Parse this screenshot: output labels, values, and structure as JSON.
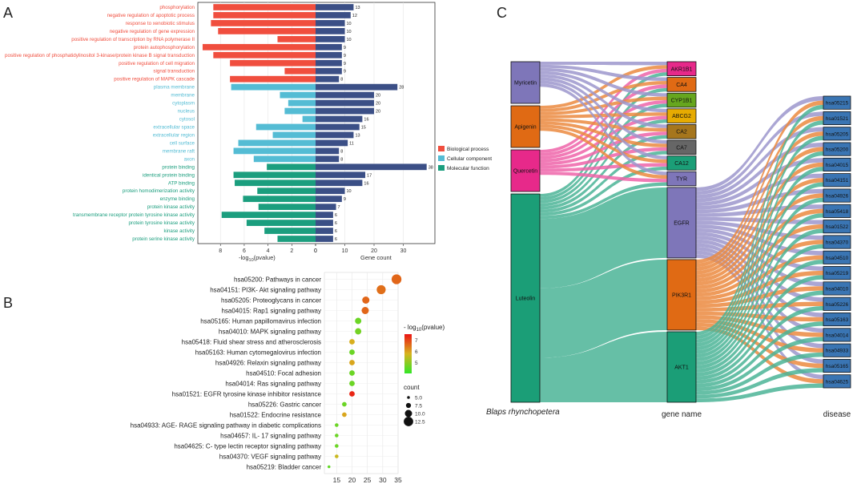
{
  "panel_labels": {
    "a": "A",
    "b": "B",
    "c": "C"
  },
  "chart_data": [
    {
      "type": "bar",
      "title": "",
      "xlabel_left_base": "-log",
      "xlabel_left_sub": "10",
      "xlabel_left_rest": "(pvalue)",
      "xlabel_right": "Gene count",
      "left_ticks": [
        "8",
        "6",
        "4",
        "2",
        "0"
      ],
      "right_ticks": [
        "0",
        "10",
        "20",
        "30"
      ],
      "left_xlim": [
        0,
        9.7
      ],
      "right_xlim": [
        0,
        40
      ],
      "colors": {
        "Biological process": "#f04e3e",
        "Cellular component": "#54bcd4",
        "Molecular function": "#1b9e7e",
        "count": "#3b4f86"
      },
      "legend": [
        "Biological process",
        "Cellular component",
        "Molecular function"
      ],
      "terms": [
        {
          "term": "phosphorylation",
          "category": "Biological process",
          "neglog10p": 8.6,
          "count": 13
        },
        {
          "term": "negative regulation of apoptotic process",
          "category": "Biological process",
          "neglog10p": 8.6,
          "count": 12
        },
        {
          "term": "response to xenobiotic stimulus",
          "category": "Biological process",
          "neglog10p": 8.8,
          "count": 10
        },
        {
          "term": "negative regulation of gene expression",
          "category": "Biological process",
          "neglog10p": 8.2,
          "count": 10
        },
        {
          "term": "positive regulation of transcription by RNA polymerase II",
          "category": "Biological process",
          "neglog10p": 3.2,
          "count": 10
        },
        {
          "term": "protein autophosphorylation",
          "category": "Biological process",
          "neglog10p": 9.5,
          "count": 9
        },
        {
          "term": "positive regulation of phosphatidylinositol 3-kinase/protein kinase B signal transduction",
          "category": "Biological process",
          "neglog10p": 8.6,
          "count": 9
        },
        {
          "term": "positive regulation of cell migration",
          "category": "Biological process",
          "neglog10p": 7.2,
          "count": 9
        },
        {
          "term": "signal transduction",
          "category": "Biological process",
          "neglog10p": 2.6,
          "count": 9
        },
        {
          "term": "positive regulation of MAPK cascade",
          "category": "Biological process",
          "neglog10p": 7.2,
          "count": 8
        },
        {
          "term": "plasma membrane",
          "category": "Cellular component",
          "neglog10p": 7.1,
          "count": 28
        },
        {
          "term": "membrane",
          "category": "Cellular component",
          "neglog10p": 3.0,
          "count": 20
        },
        {
          "term": "cytoplasm",
          "category": "Cellular component",
          "neglog10p": 2.3,
          "count": 20
        },
        {
          "term": "nucleus",
          "category": "Cellular component",
          "neglog10p": 2.6,
          "count": 20
        },
        {
          "term": "cytosol",
          "category": "Cellular component",
          "neglog10p": 1.1,
          "count": 16
        },
        {
          "term": "extracellular space",
          "category": "Cellular component",
          "neglog10p": 5.0,
          "count": 15
        },
        {
          "term": "extracellular region",
          "category": "Cellular component",
          "neglog10p": 3.6,
          "count": 13
        },
        {
          "term": "cell surface",
          "category": "Cellular component",
          "neglog10p": 6.5,
          "count": 11
        },
        {
          "term": "membrane raft",
          "category": "Cellular component",
          "neglog10p": 6.9,
          "count": 8
        },
        {
          "term": "axon",
          "category": "Cellular component",
          "neglog10p": 5.2,
          "count": 8
        },
        {
          "term": "protein binding",
          "category": "Molecular function",
          "neglog10p": 4.1,
          "count": 38
        },
        {
          "term": "identical protein binding",
          "category": "Molecular function",
          "neglog10p": 6.9,
          "count": 17
        },
        {
          "term": "ATP binding",
          "category": "Molecular function",
          "neglog10p": 6.8,
          "count": 16
        },
        {
          "term": "protein homodimerization activity",
          "category": "Molecular function",
          "neglog10p": 4.9,
          "count": 10
        },
        {
          "term": "enzyme binding",
          "category": "Molecular function",
          "neglog10p": 6.1,
          "count": 9
        },
        {
          "term": "protein kinase activity",
          "category": "Molecular function",
          "neglog10p": 4.8,
          "count": 7
        },
        {
          "term": "transmembrane receptor protein tyrosine kinase activity",
          "category": "Molecular function",
          "neglog10p": 7.9,
          "count": 6
        },
        {
          "term": "protein tyrosine kinase activity",
          "category": "Molecular function",
          "neglog10p": 5.8,
          "count": 6
        },
        {
          "term": "kinase activity",
          "category": "Molecular function",
          "neglog10p": 4.3,
          "count": 6
        },
        {
          "term": "protein serine kinase activity",
          "category": "Molecular function",
          "neglog10p": 3.2,
          "count": 6
        }
      ]
    },
    {
      "type": "scatter",
      "title": "",
      "xlabel": "",
      "x_ticks": [
        "15",
        "20",
        "25",
        "30",
        "35"
      ],
      "xlim": [
        11,
        35
      ],
      "color_legend_title_base": "- log",
      "color_legend_title_sub": "10",
      "color_legend_title_rest": "(pvalue)",
      "color_ticks": [
        "7",
        "6",
        "5"
      ],
      "color_range": [
        4,
        7.5
      ],
      "size_legend_title": "count",
      "size_ticks": [
        "5.0",
        "7.5",
        "10.0",
        "12.5"
      ],
      "pathways": [
        {
          "label": "hsa05200: Pathways in cancer",
          "x": 34.5,
          "logp": 6.6,
          "count": 13
        },
        {
          "label": "hsa04151: PI3K- Akt signaling pathway",
          "x": 29.5,
          "logp": 6.5,
          "count": 12
        },
        {
          "label": "hsa05205: Proteoglycans in cancer",
          "x": 24.5,
          "logp": 6.6,
          "count": 10
        },
        {
          "label": "hsa04015: Rap1 signaling pathway",
          "x": 24.3,
          "logp": 6.6,
          "count": 10
        },
        {
          "label": "hsa05165: Human papillomavirus infection",
          "x": 22.0,
          "logp": 4.6,
          "count": 9
        },
        {
          "label": "hsa04010: MAPK signaling pathway",
          "x": 22.0,
          "logp": 4.7,
          "count": 9
        },
        {
          "label": "hsa05418: Fluid shear stress and atherosclerosis",
          "x": 20.0,
          "logp": 5.8,
          "count": 8
        },
        {
          "label": "hsa05163: Human cytomegalovirus infection",
          "x": 20.0,
          "logp": 4.6,
          "count": 8
        },
        {
          "label": "hsa04926: Relaxin signaling pathway",
          "x": 20.0,
          "logp": 5.9,
          "count": 8
        },
        {
          "label": "hsa04510: Focal adhesion",
          "x": 20.0,
          "logp": 4.6,
          "count": 8
        },
        {
          "label": "hsa04014: Ras signaling pathway",
          "x": 20.0,
          "logp": 4.6,
          "count": 8
        },
        {
          "label": "hsa01521: EGFR tyrosine kinase inhibitor resistance",
          "x": 20.0,
          "logp": 7.3,
          "count": 8
        },
        {
          "label": "hsa05226: Gastric cancer",
          "x": 17.5,
          "logp": 4.6,
          "count": 7
        },
        {
          "label": "hsa01522: Endocrine resistance",
          "x": 17.5,
          "logp": 5.9,
          "count": 7
        },
        {
          "label": "hsa04933: AGE- RAGE signaling pathway in diabetic complications",
          "x": 15.0,
          "logp": 4.6,
          "count": 6
        },
        {
          "label": "hsa04657: IL- 17 signaling pathway",
          "x": 15.0,
          "logp": 4.6,
          "count": 6
        },
        {
          "label": "hsa04625: C- type lectin receptor signaling pathway",
          "x": 15.0,
          "logp": 4.6,
          "count": 6
        },
        {
          "label": "hsa04370: VEGF signaling pathway",
          "x": 15.0,
          "logp": 5.6,
          "count": 6
        },
        {
          "label": "hsa05219: Bladder cancer",
          "x": 12.5,
          "logp": 4.5,
          "count": 5
        }
      ]
    },
    {
      "type": "sankey",
      "title": "",
      "column_labels": {
        "left": "Blaps rhynchopetera",
        "middle": "gene name",
        "right": "disease"
      },
      "sources": [
        {
          "name": "Myricetin",
          "color": "#7e76b9",
          "weight": 3
        },
        {
          "name": "Apigenin",
          "color": "#e06a14",
          "weight": 3
        },
        {
          "name": "Quercetin",
          "color": "#e7298a",
          "weight": 3
        },
        {
          "name": "Luteolin",
          "color": "#1b9e77",
          "weight": 15
        }
      ],
      "genes": [
        {
          "name": "AKR1B1",
          "color": "#e7298a",
          "weight": 1
        },
        {
          "name": "CA4",
          "color": "#e06a14",
          "weight": 1
        },
        {
          "name": "CYP1B1",
          "color": "#66a61e",
          "weight": 1
        },
        {
          "name": "ABCG2",
          "color": "#e6ab02",
          "weight": 1
        },
        {
          "name": "CA2",
          "color": "#a6761d",
          "weight": 1
        },
        {
          "name": "CA7",
          "color": "#666666",
          "weight": 1
        },
        {
          "name": "CA12",
          "color": "#1b9e77",
          "weight": 1
        },
        {
          "name": "TYR",
          "color": "#7e76b9",
          "weight": 1
        },
        {
          "name": "EGFR",
          "color": "#7e76b9",
          "weight": 5
        },
        {
          "name": "PIK3R1",
          "color": "#e06a14",
          "weight": 5
        },
        {
          "name": "AKT1",
          "color": "#1b9e77",
          "weight": 5
        }
      ],
      "diseases": [
        "hsa05215",
        "hsa01521",
        "hsa05205",
        "hsa05200",
        "hsa04015",
        "hsa04151",
        "hsa04926",
        "hsa05418",
        "hsa01522",
        "hsa04370",
        "hsa04510",
        "hsa05219",
        "hsa04010",
        "hsa05226",
        "hsa05163",
        "hsa04014",
        "hsa04933",
        "hsa05165",
        "hsa04625"
      ],
      "disease_color": "#3a75b3",
      "flow_colors": [
        "#9c96cd",
        "#eb8a3f",
        "#ee64a9",
        "#4bb496"
      ],
      "gene_source": [
        [
          "Myricetin",
          "Apigenin",
          "Quercetin",
          "Luteolin"
        ],
        [
          "Myricetin",
          "Apigenin",
          "Quercetin",
          "Luteolin"
        ],
        [
          "Myricetin",
          "Apigenin",
          "Quercetin",
          "Luteolin"
        ],
        [
          "Myricetin",
          "Apigenin",
          "Quercetin",
          "Luteolin"
        ],
        [
          "Myricetin",
          "Apigenin",
          "Quercetin",
          "Luteolin"
        ],
        [
          "Myricetin",
          "Apigenin",
          "Quercetin",
          "Luteolin"
        ],
        [
          "Myricetin",
          "Apigenin",
          "Quercetin",
          "Luteolin"
        ],
        [
          "Myricetin",
          "Apigenin",
          "Quercetin",
          "Luteolin"
        ],
        [
          "Luteolin"
        ],
        [
          "Luteolin"
        ],
        [
          "Luteolin"
        ]
      ]
    }
  ]
}
